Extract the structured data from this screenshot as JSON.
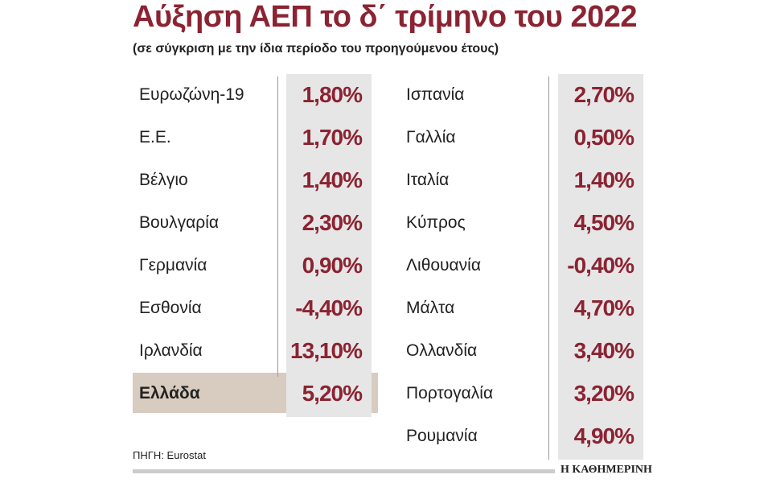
{
  "header": {
    "title": "Αύξηση ΑΕΠ το δ΄ τρίμηνο του 2022",
    "subtitle": "(σε σύγκριση με την ίδια περίοδο του προηγούμενου έτους)"
  },
  "left": {
    "rows": [
      [
        "Ευρωζώνη-19",
        "1,80%"
      ],
      [
        "Ε.Ε.",
        "1,70%"
      ],
      [
        "Βέλγιο",
        "1,40%"
      ],
      [
        "Βουλγαρία",
        "2,30%"
      ],
      [
        "Γερμανία",
        "0,90%"
      ],
      [
        "Εσθονία",
        "-4,40%"
      ],
      [
        "Ιρλανδία",
        "13,10%"
      ],
      [
        "Ελλάδα",
        "5,20%"
      ]
    ],
    "highlight_row": 7
  },
  "right": {
    "rows": [
      [
        "Ισπανία",
        "2,70%"
      ],
      [
        "Γαλλία",
        "0,50%"
      ],
      [
        "Ιταλία",
        "1,40%"
      ],
      [
        "Κύπρος",
        "4,50%"
      ],
      [
        "Λιθουανία",
        "-0,40%"
      ],
      [
        "Μάλτα",
        "4,70%"
      ],
      [
        "Ολλανδία",
        "3,40%"
      ],
      [
        "Πορτογαλία",
        "3,20%"
      ],
      [
        "Ρουμανία",
        "4,90%"
      ]
    ]
  },
  "footer": {
    "source": "ΠΗΓΗ: Eurostat",
    "brand": "Η ΚΑΘΗΜΕΡΙΝΗ"
  }
}
